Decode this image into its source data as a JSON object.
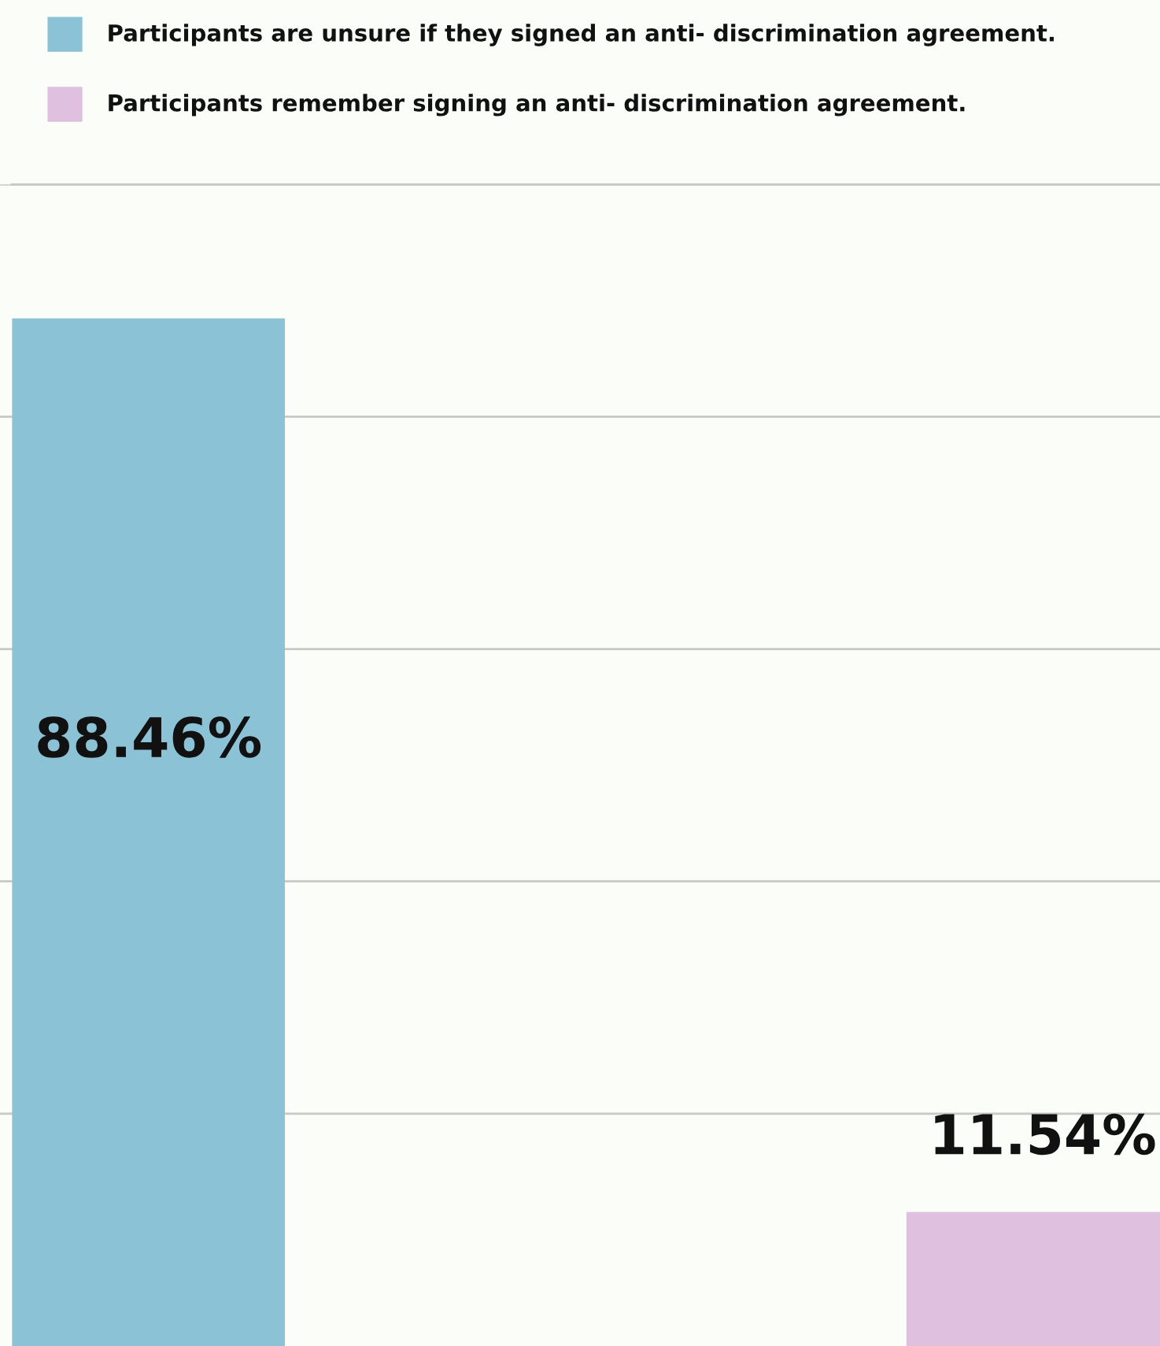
{
  "chart_data": {
    "type": "bar",
    "categories": [
      null,
      null
    ],
    "values": [
      88.46,
      11.54
    ],
    "colors": [
      "#8bc2d6",
      "#dfc0de"
    ],
    "value_labels": [
      "88.46%",
      "11.54%"
    ],
    "annotations": [
      "Participants are unsure if they signed an anti- discrimination agreement.",
      "Participants remember signing an anti- discrimination agreement."
    ],
    "ylim": [
      0,
      100
    ],
    "yticks": [
      {
        "value": 20,
        "label": null
      },
      {
        "value": 40,
        "label": null
      },
      {
        "value": 60,
        "label": null
      },
      {
        "value": 80,
        "label": null
      },
      {
        "value": 100,
        "label": null
      }
    ],
    "grid": "y"
  }
}
